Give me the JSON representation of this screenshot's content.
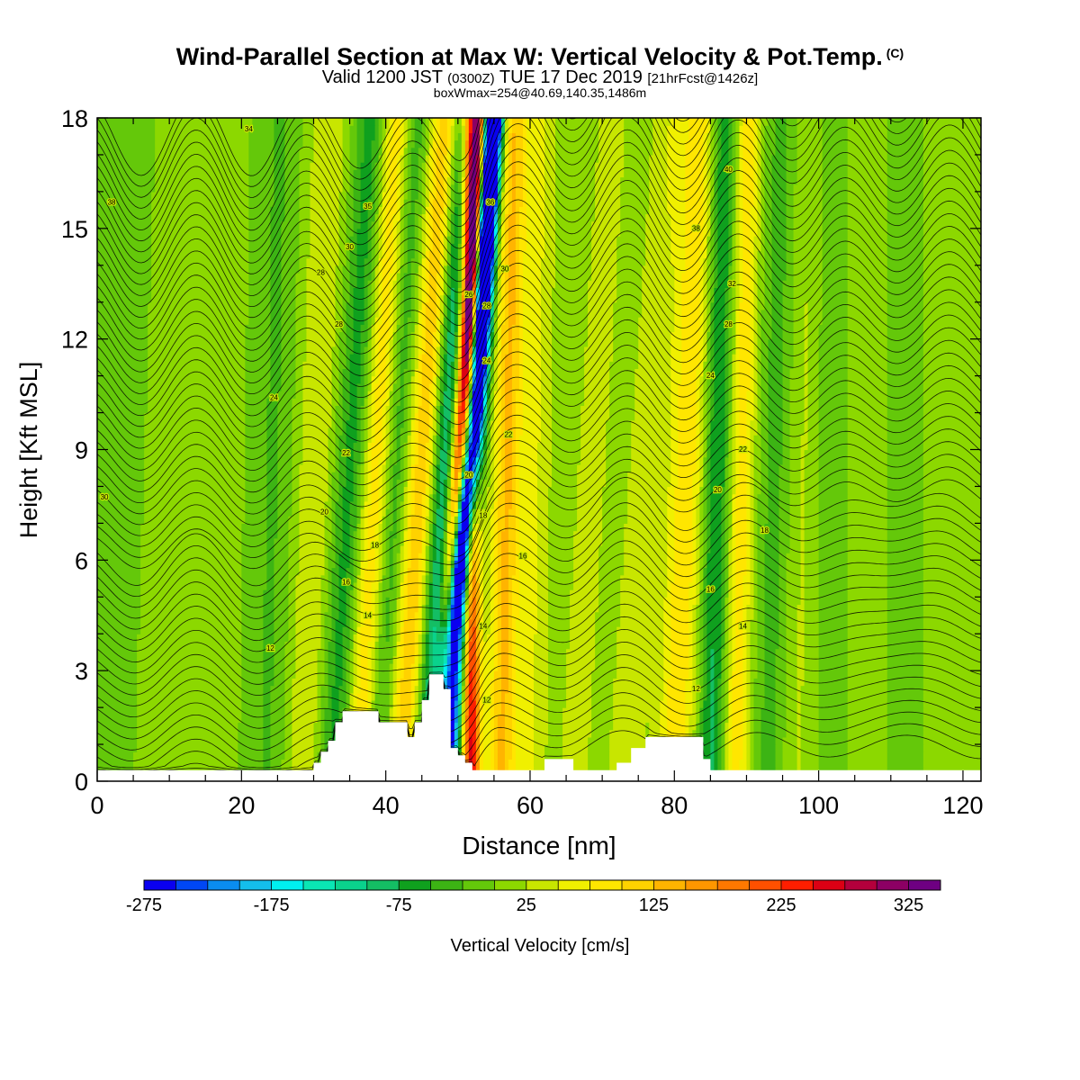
{
  "header": {
    "title": "Wind-Parallel Section at Max W: Vertical Velocity & Pot.Temp.",
    "title_mark": "(C)",
    "valid_prefix": "Valid 1200 JST",
    "valid_zulu": "(0300Z)",
    "valid_date": "TUE 17 Dec 2019",
    "forecast": "[21hrFcst@1426z]",
    "box_info": "boxWmax=254@40.69,140.35,1486m"
  },
  "chart_data": {
    "type": "heatmap",
    "title": "Wind-Parallel Section at Max W: Vertical Velocity & Pot.Temp.",
    "xlabel": "Distance [nm]",
    "ylabel": "Height [Kft MSL]",
    "xlim": [
      0,
      122.5
    ],
    "ylim": [
      0,
      18
    ],
    "x_ticks": [
      0,
      20,
      40,
      60,
      80,
      100,
      120
    ],
    "y_ticks": [
      0,
      3,
      6,
      9,
      12,
      15,
      18
    ],
    "grid": false,
    "colorbar": {
      "label": "Vertical Velocity [cm/s]",
      "min": -275,
      "max": 350,
      "step": 25,
      "tick_values": [
        -275,
        -175,
        -75,
        25,
        125,
        225,
        325
      ],
      "tick_labels": [
        "-275",
        "-175",
        "-75",
        "25",
        "125",
        "225",
        "325"
      ],
      "colors": [
        "#0a00f0",
        "#0047f5",
        "#0a8cf0",
        "#14beeb",
        "#00f0f0",
        "#0ae6b4",
        "#0ad28c",
        "#14be64",
        "#0fa01e",
        "#3cb414",
        "#64c80a",
        "#8cd800",
        "#c8e600",
        "#f0f000",
        "#ffe600",
        "#ffd200",
        "#ffb400",
        "#ff9600",
        "#ff7800",
        "#ff5000",
        "#ff1e00",
        "#dc0014",
        "#b4003c",
        "#8c0064",
        "#6e0082"
      ]
    },
    "velocity_bands": [
      {
        "x_base": -6,
        "w": -25,
        "sigma": 10,
        "slope": 0.2
      },
      {
        "x_base": 8,
        "w": 10,
        "sigma": 5,
        "slope": 0.1
      },
      {
        "x_base": 23.5,
        "w": -32,
        "sigma": 2,
        "slope": 0.1
      },
      {
        "x_base": 28.5,
        "w": 45,
        "sigma": 1.8,
        "slope": 0.2
      },
      {
        "x_base": 32.5,
        "w": -65,
        "sigma": 1.5,
        "slope": 0.3
      },
      {
        "x_base": 36,
        "w": 85,
        "sigma": 1.3,
        "slope": 0.3
      },
      {
        "x_base": 39,
        "w": -45,
        "sigma": 1.1,
        "slope": 0.3
      },
      {
        "x_base": 42,
        "w": 115,
        "sigma": 1.4,
        "slope": 0.35
      },
      {
        "x_base": 45.5,
        "w": -110,
        "sigma": 1.2,
        "slope": 0.3
      },
      {
        "x_base": 48.5,
        "w": -275,
        "sigma": 1.1,
        "slope": 0.35
      },
      {
        "x_base": 51.8,
        "w": 255,
        "sigma": 0.9,
        "slope": 0.0
      },
      {
        "x_base": 56,
        "w": 125,
        "sigma": 1.4,
        "slope": 0.1
      },
      {
        "x_base": 60,
        "w": 45,
        "sigma": 1.5,
        "slope": 0.1
      },
      {
        "x_base": 66,
        "w": 30,
        "sigma": 2,
        "slope": 0.3
      },
      {
        "x_base": 73,
        "w": 40,
        "sigma": 1.8,
        "slope": 0.35
      },
      {
        "x_base": 80,
        "w": 90,
        "sigma": 1.8,
        "slope": 0.2
      },
      {
        "x_base": 85,
        "w": -85,
        "sigma": 1.3,
        "slope": 0.1
      },
      {
        "x_base": 88.5,
        "w": 85,
        "sigma": 1.2,
        "slope": 0.1
      },
      {
        "x_base": 93,
        "w": -38,
        "sigma": 1.5,
        "slope": 0.1
      },
      {
        "x_base": 97,
        "w": 22,
        "sigma": 1.4,
        "slope": 0.1
      },
      {
        "x_base": 102,
        "w": -28,
        "sigma": 1.4,
        "slope": 0.0
      },
      {
        "x_base": 107,
        "w": 18,
        "sigma": 1.8,
        "slope": 0.0
      },
      {
        "x_base": 112,
        "w": -30,
        "sigma": 1.8,
        "slope": 0.0
      },
      {
        "x_base": 117,
        "w": 20,
        "sigma": 1.8,
        "slope": 0.0
      }
    ],
    "core_updraft_path": [
      [
        48.2,
        2.9
      ],
      [
        50.3,
        9
      ],
      [
        52.2,
        14
      ],
      [
        53.2,
        18
      ]
    ],
    "core_downdraft_path": [
      [
        48.1,
        2.9
      ],
      [
        52,
        9
      ],
      [
        53.6,
        14
      ],
      [
        54.7,
        18
      ]
    ],
    "terrain": [
      [
        0,
        0.3
      ],
      [
        30,
        0.3
      ],
      [
        30,
        0.5
      ],
      [
        31,
        0.5
      ],
      [
        31,
        0.8
      ],
      [
        32,
        0.8
      ],
      [
        32,
        1.1
      ],
      [
        33,
        1.1
      ],
      [
        33,
        1.6
      ],
      [
        34,
        1.6
      ],
      [
        34,
        1.9
      ],
      [
        39,
        1.9
      ],
      [
        39,
        1.6
      ],
      [
        43,
        1.6
      ],
      [
        43,
        1.2
      ],
      [
        44,
        1.2
      ],
      [
        44,
        1.6
      ],
      [
        45,
        1.6
      ],
      [
        45,
        2.2
      ],
      [
        46,
        2.2
      ],
      [
        46,
        2.9
      ],
      [
        48,
        2.9
      ],
      [
        48,
        2.5
      ],
      [
        49,
        2.5
      ],
      [
        49,
        0.9
      ],
      [
        50,
        0.9
      ],
      [
        50,
        0.7
      ],
      [
        51,
        0.7
      ],
      [
        51,
        0.5
      ],
      [
        52,
        0.5
      ],
      [
        52,
        0.3
      ],
      [
        62,
        0.3
      ],
      [
        62,
        0.6
      ],
      [
        66,
        0.6
      ],
      [
        66,
        0.3
      ],
      [
        72,
        0.3
      ],
      [
        72,
        0.5
      ],
      [
        74,
        0.5
      ],
      [
        74,
        0.9
      ],
      [
        76,
        0.9
      ],
      [
        76,
        1.2
      ],
      [
        84,
        1.2
      ],
      [
        84,
        0.6
      ],
      [
        85,
        0.6
      ],
      [
        85,
        0.3
      ],
      [
        122.5,
        0.3
      ]
    ],
    "theta_contour_labels": [
      {
        "x": 2,
        "y": 15.7,
        "text": "38"
      },
      {
        "x": 1,
        "y": 7.7,
        "text": "30"
      },
      {
        "x": 21,
        "y": 17.7,
        "text": "34"
      },
      {
        "x": 24,
        "y": 3.6,
        "text": "12"
      },
      {
        "x": 24.5,
        "y": 10.4,
        "text": "24"
      },
      {
        "x": 31,
        "y": 13.8,
        "text": "28"
      },
      {
        "x": 33.5,
        "y": 12.4,
        "text": "28"
      },
      {
        "x": 35,
        "y": 14.5,
        "text": "30"
      },
      {
        "x": 37.5,
        "y": 15.6,
        "text": "35"
      },
      {
        "x": 34.5,
        "y": 8.9,
        "text": "22"
      },
      {
        "x": 31.5,
        "y": 7.3,
        "text": "20"
      },
      {
        "x": 38.5,
        "y": 6.4,
        "text": "18"
      },
      {
        "x": 34.5,
        "y": 5.4,
        "text": "16"
      },
      {
        "x": 37.5,
        "y": 4.5,
        "text": "14"
      },
      {
        "x": 51.5,
        "y": 13.2,
        "text": "26"
      },
      {
        "x": 54,
        "y": 12.9,
        "text": "28"
      },
      {
        "x": 54.5,
        "y": 15.7,
        "text": "36"
      },
      {
        "x": 56.5,
        "y": 13.9,
        "text": "30"
      },
      {
        "x": 54,
        "y": 11.4,
        "text": "24"
      },
      {
        "x": 51.5,
        "y": 8.3,
        "text": "20"
      },
      {
        "x": 57,
        "y": 9.4,
        "text": "22"
      },
      {
        "x": 53.5,
        "y": 7.2,
        "text": "18"
      },
      {
        "x": 59,
        "y": 6.1,
        "text": "16"
      },
      {
        "x": 53.5,
        "y": 4.2,
        "text": "14"
      },
      {
        "x": 54,
        "y": 2.2,
        "text": "12"
      },
      {
        "x": 87.5,
        "y": 16.6,
        "text": "40"
      },
      {
        "x": 83,
        "y": 15.0,
        "text": "38"
      },
      {
        "x": 88,
        "y": 13.5,
        "text": "32"
      },
      {
        "x": 87.5,
        "y": 12.4,
        "text": "28"
      },
      {
        "x": 85,
        "y": 11.0,
        "text": "24"
      },
      {
        "x": 89.5,
        "y": 9.0,
        "text": "22"
      },
      {
        "x": 86,
        "y": 7.9,
        "text": "20"
      },
      {
        "x": 92.5,
        "y": 6.8,
        "text": "18"
      },
      {
        "x": 85,
        "y": 5.2,
        "text": "16"
      },
      {
        "x": 89.5,
        "y": 4.2,
        "text": "14"
      },
      {
        "x": 83,
        "y": 2.5,
        "text": "12"
      }
    ]
  }
}
